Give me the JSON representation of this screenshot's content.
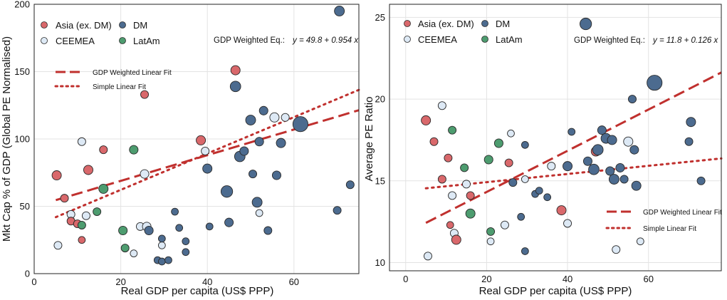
{
  "colors": {
    "asia": "#d9686b",
    "ceemea": "#dde9f5",
    "dm": "#4c6b8f",
    "latam": "#4d9c6f",
    "fit_line": "#c0302e",
    "marker_edge": "#2a2a2a"
  },
  "chart_data": [
    {
      "type": "scatter",
      "title": "",
      "xlabel": "Real GDP per capita (US$ PPP)",
      "ylabel": "Mkt Cap % of GDP (Global PE Normalised)",
      "xlim": [
        0,
        75
      ],
      "ylim": [
        0,
        200
      ],
      "xticks": [
        0,
        20,
        40,
        60
      ],
      "yticks": [
        0,
        50,
        100,
        150,
        200
      ],
      "grid": true,
      "legend": {
        "position": "top-left",
        "entries": [
          {
            "key": "asia",
            "label": "Asia (ex. DM)"
          },
          {
            "key": "dm",
            "label": "DM"
          },
          {
            "key": "ceemea",
            "label": "CEEMEA"
          },
          {
            "key": "latam",
            "label": "LatAm"
          }
        ]
      },
      "equation_label": "GDP  Weighted  Eq.:",
      "equation_formula": "y = 49.8 + 0.954 x",
      "fit_legend": {
        "position": "middle-left",
        "entries": [
          {
            "style": "dashed",
            "label": "GDP Weighted Linear Fit"
          },
          {
            "style": "dotted",
            "label": "Simple Linear Fit"
          }
        ]
      },
      "fits": {
        "weighted": {
          "intercept": 49.8,
          "slope": 0.954,
          "x_range": [
            5,
            75
          ]
        },
        "simple": {
          "intercept": 35.2,
          "slope": 1.35,
          "x_range": [
            5,
            75
          ]
        }
      },
      "series": [
        {
          "name": "Asia (ex. DM)",
          "key": "asia",
          "points": [
            {
              "x": 5.2,
              "y": 73,
              "s": 3
            },
            {
              "x": 7,
              "y": 56,
              "s": 2
            },
            {
              "x": 8.5,
              "y": 39,
              "s": 2
            },
            {
              "x": 10,
              "y": 37,
              "s": 2
            },
            {
              "x": 11,
              "y": 25,
              "s": 1.5
            },
            {
              "x": 12.5,
              "y": 77,
              "s": 3
            },
            {
              "x": 16,
              "y": 92,
              "s": 2
            },
            {
              "x": 25.5,
              "y": 133,
              "s": 2
            },
            {
              "x": 38.5,
              "y": 99,
              "s": 3
            },
            {
              "x": 46.5,
              "y": 151,
              "s": 3
            }
          ]
        },
        {
          "name": "CEEMEA",
          "key": "ceemea",
          "points": [
            {
              "x": 5.5,
              "y": 21,
              "s": 2
            },
            {
              "x": 8.5,
              "y": 44,
              "s": 2
            },
            {
              "x": 11,
              "y": 98,
              "s": 2
            },
            {
              "x": 12,
              "y": 43,
              "s": 2
            },
            {
              "x": 23,
              "y": 15,
              "s": 1.5
            },
            {
              "x": 24.5,
              "y": 35,
              "s": 2
            },
            {
              "x": 25.5,
              "y": 74,
              "s": 2.5
            },
            {
              "x": 26,
              "y": 35,
              "s": 2.5
            },
            {
              "x": 29.5,
              "y": 21,
              "s": 1.5
            },
            {
              "x": 39.5,
              "y": 91,
              "s": 2
            },
            {
              "x": 52,
              "y": 45,
              "s": 1.5
            },
            {
              "x": 55.5,
              "y": 116,
              "s": 3
            },
            {
              "x": 58,
              "y": 116,
              "s": 2
            }
          ]
        },
        {
          "name": "DM",
          "key": "dm",
          "points": [
            {
              "x": 26.5,
              "y": 32,
              "s": 2.5
            },
            {
              "x": 28.5,
              "y": 10,
              "s": 1.5
            },
            {
              "x": 29.5,
              "y": 26,
              "s": 1.5
            },
            {
              "x": 29.5,
              "y": 9,
              "s": 1.5
            },
            {
              "x": 31,
              "y": 10,
              "s": 1.5
            },
            {
              "x": 32.5,
              "y": 46,
              "s": 1.5
            },
            {
              "x": 33.5,
              "y": 34,
              "s": 1.5
            },
            {
              "x": 35,
              "y": 24,
              "s": 1.5
            },
            {
              "x": 35,
              "y": 16,
              "s": 1.5
            },
            {
              "x": 40,
              "y": 78,
              "s": 3
            },
            {
              "x": 40.5,
              "y": 35,
              "s": 1.5
            },
            {
              "x": 44.5,
              "y": 61,
              "s": 5
            },
            {
              "x": 45,
              "y": 38,
              "s": 2.5
            },
            {
              "x": 46.5,
              "y": 139,
              "s": 4
            },
            {
              "x": 47.5,
              "y": 87,
              "s": 4
            },
            {
              "x": 48.5,
              "y": 91,
              "s": 2.5
            },
            {
              "x": 50,
              "y": 114,
              "s": 3.5
            },
            {
              "x": 50.5,
              "y": 74,
              "s": 2
            },
            {
              "x": 51.5,
              "y": 53,
              "s": 3.5
            },
            {
              "x": 52,
              "y": 98,
              "s": 2.5
            },
            {
              "x": 53,
              "y": 121,
              "s": 2.5
            },
            {
              "x": 54,
              "y": 32,
              "s": 2
            },
            {
              "x": 56,
              "y": 73,
              "s": 2.5
            },
            {
              "x": 57,
              "y": 97,
              "s": 3
            },
            {
              "x": 61.5,
              "y": 111,
              "s": 9
            },
            {
              "x": 70,
              "y": 47,
              "s": 2
            },
            {
              "x": 70.5,
              "y": 195,
              "s": 3.5
            },
            {
              "x": 73,
              "y": 66,
              "s": 2
            }
          ]
        },
        {
          "name": "LatAm",
          "key": "latam",
          "points": [
            {
              "x": 11,
              "y": 36,
              "s": 2
            },
            {
              "x": 14.5,
              "y": 46,
              "s": 2
            },
            {
              "x": 16,
              "y": 63,
              "s": 3
            },
            {
              "x": 20.5,
              "y": 32,
              "s": 2.5
            },
            {
              "x": 21,
              "y": 19,
              "s": 2
            },
            {
              "x": 23,
              "y": 92,
              "s": 2.5
            }
          ]
        }
      ]
    },
    {
      "type": "scatter",
      "title": "",
      "xlabel": "Real GDP per capita (US$ PPP)",
      "ylabel": "Average PE Ratio",
      "xlim": [
        -4,
        78
      ],
      "ylim": [
        9.5,
        25.8
      ],
      "xticks": [
        0,
        20,
        40,
        60
      ],
      "yticks": [
        10,
        15,
        20,
        25
      ],
      "grid": true,
      "legend": {
        "position": "top-left",
        "entries": [
          {
            "key": "asia",
            "label": "Asia (ex. DM)"
          },
          {
            "key": "dm",
            "label": "DM"
          },
          {
            "key": "ceemea",
            "label": "CEEMEA"
          },
          {
            "key": "latam",
            "label": "LatAm"
          }
        ]
      },
      "equation_label": "GDP  Weighted  Eq.:",
      "equation_formula": "y = 11.8 + 0.126 x",
      "fit_legend": {
        "position": "bottom-right",
        "entries": [
          {
            "style": "dashed",
            "label": "GDP Weighted Linear Fit"
          },
          {
            "style": "dotted",
            "label": "Simple Linear Fit"
          }
        ]
      },
      "fits": {
        "weighted": {
          "intercept": 11.8,
          "slope": 0.126,
          "x_range": [
            5,
            78
          ]
        },
        "simple": {
          "intercept": 14.42,
          "slope": 0.025,
          "x_range": [
            5,
            78
          ]
        }
      },
      "series": [
        {
          "name": "Asia (ex. DM)",
          "key": "asia",
          "points": [
            {
              "x": 5,
              "y": 18.7,
              "s": 3
            },
            {
              "x": 7,
              "y": 17.4,
              "s": 2
            },
            {
              "x": 9,
              "y": 15.1,
              "s": 2
            },
            {
              "x": 10.5,
              "y": 16.4,
              "s": 2
            },
            {
              "x": 11,
              "y": 12.3,
              "s": 1.5
            },
            {
              "x": 12.5,
              "y": 11.4,
              "s": 3
            },
            {
              "x": 16,
              "y": 14.1,
              "s": 2
            },
            {
              "x": 25.5,
              "y": 16.1,
              "s": 2
            },
            {
              "x": 38.5,
              "y": 13.2,
              "s": 3
            },
            {
              "x": 47,
              "y": 16.8,
              "s": 3
            }
          ]
        },
        {
          "name": "CEEMEA",
          "key": "ceemea",
          "points": [
            {
              "x": 5.5,
              "y": 10.4,
              "s": 2
            },
            {
              "x": 9,
              "y": 19.6,
              "s": 2
            },
            {
              "x": 11.5,
              "y": 14.1,
              "s": 2
            },
            {
              "x": 12,
              "y": 11.8,
              "s": 2
            },
            {
              "x": 15,
              "y": 14.8,
              "s": 2
            },
            {
              "x": 21,
              "y": 11.3,
              "s": 1.5
            },
            {
              "x": 24.5,
              "y": 12.3,
              "s": 2
            },
            {
              "x": 26,
              "y": 17.9,
              "s": 1.5
            },
            {
              "x": 29.5,
              "y": 15.1,
              "s": 1.5
            },
            {
              "x": 36,
              "y": 15.9,
              "s": 2
            },
            {
              "x": 40,
              "y": 12.4,
              "s": 2
            },
            {
              "x": 52,
              "y": 10.8,
              "s": 2
            },
            {
              "x": 55,
              "y": 17.4,
              "s": 3
            },
            {
              "x": 58,
              "y": 11.3,
              "s": 1.5
            }
          ]
        },
        {
          "name": "DM",
          "key": "dm",
          "points": [
            {
              "x": 26.5,
              "y": 14.9,
              "s": 2
            },
            {
              "x": 28.5,
              "y": 12.8,
              "s": 1.5
            },
            {
              "x": 29.5,
              "y": 10.7,
              "s": 1.5
            },
            {
              "x": 29.5,
              "y": 17.2,
              "s": 1.5
            },
            {
              "x": 32,
              "y": 14.2,
              "s": 1.5
            },
            {
              "x": 33,
              "y": 14.4,
              "s": 1.5
            },
            {
              "x": 35,
              "y": 14.0,
              "s": 1.5
            },
            {
              "x": 40,
              "y": 15.9,
              "s": 3
            },
            {
              "x": 41,
              "y": 18.0,
              "s": 1.5
            },
            {
              "x": 44.5,
              "y": 24.6,
              "s": 5
            },
            {
              "x": 45,
              "y": 16.2,
              "s": 2.5
            },
            {
              "x": 46.5,
              "y": 15.7,
              "s": 4
            },
            {
              "x": 47.5,
              "y": 16.9,
              "s": 4
            },
            {
              "x": 48.5,
              "y": 18.1,
              "s": 2.5
            },
            {
              "x": 49.5,
              "y": 17.6,
              "s": 3.5
            },
            {
              "x": 50.5,
              "y": 15.6,
              "s": 2.5
            },
            {
              "x": 51,
              "y": 17.5,
              "s": 3
            },
            {
              "x": 51.5,
              "y": 15.1,
              "s": 3.5
            },
            {
              "x": 53,
              "y": 15.8,
              "s": 2.5
            },
            {
              "x": 54,
              "y": 15.1,
              "s": 2
            },
            {
              "x": 56,
              "y": 20.0,
              "s": 2
            },
            {
              "x": 56.5,
              "y": 16.9,
              "s": 2.5
            },
            {
              "x": 57,
              "y": 14.7,
              "s": 3
            },
            {
              "x": 61.5,
              "y": 21.0,
              "s": 9
            },
            {
              "x": 70,
              "y": 17.4,
              "s": 2
            },
            {
              "x": 70.5,
              "y": 18.6,
              "s": 3
            },
            {
              "x": 73,
              "y": 15.0,
              "s": 2
            }
          ]
        },
        {
          "name": "LatAm",
          "key": "latam",
          "points": [
            {
              "x": 11.5,
              "y": 18.1,
              "s": 2
            },
            {
              "x": 14.5,
              "y": 15.8,
              "s": 2
            },
            {
              "x": 16,
              "y": 13.0,
              "s": 3
            },
            {
              "x": 20.5,
              "y": 16.3,
              "s": 2.5
            },
            {
              "x": 21,
              "y": 11.9,
              "s": 2
            },
            {
              "x": 23,
              "y": 17.3,
              "s": 2.5
            }
          ]
        }
      ]
    }
  ]
}
